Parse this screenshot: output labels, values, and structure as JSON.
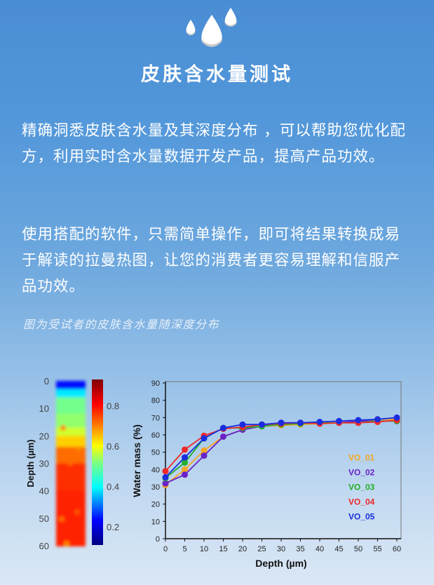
{
  "header": {
    "icon": "water-drops-icon",
    "title": "皮肤含水量测试"
  },
  "paragraphs": [
    "精确洞悉皮肤含水量及其深度分布 ，可以帮助您优化配方，利用实时含水量数据开发产品，提高产品功效。",
    "使用搭配的软件，只需简单操作，即可将结果转换成易于解读的拉曼热图，让您的消费者更容易理解和信服产品功效。"
  ],
  "caption": "图为受试者的皮肤含水量随深度分布",
  "chart_data": [
    {
      "type": "heatmap",
      "ylabel": "Depth (µm)",
      "yticks": [
        "0",
        "10",
        "20",
        "30",
        "40",
        "50",
        "60"
      ],
      "ylim": [
        0,
        60
      ],
      "colorbar": {
        "ticks": [
          "0.2",
          "0.4",
          "0.6",
          "0.8"
        ],
        "range": [
          0.11,
          0.93
        ],
        "colormap": "jet"
      },
      "profile_description_values": {
        "depth": [
          0,
          3,
          6,
          12,
          17,
          20,
          24,
          30,
          40,
          60
        ],
        "value": [
          0.15,
          0.3,
          0.5,
          0.52,
          0.55,
          0.62,
          0.7,
          0.78,
          0.8,
          0.8
        ]
      }
    },
    {
      "type": "line",
      "xlabel": "Depth (µm)",
      "ylabel": "Water mass (%)",
      "xlim": [
        0,
        60
      ],
      "ylim": [
        0,
        90
      ],
      "xticks": [
        "0",
        "5",
        "10",
        "15",
        "20",
        "25",
        "30",
        "35",
        "40",
        "45",
        "50",
        "55",
        "60"
      ],
      "yticks": [
        "0",
        "10",
        "20",
        "30",
        "40",
        "50",
        "60",
        "70",
        "80",
        "90"
      ],
      "legend_position": "right",
      "x": [
        0,
        5,
        10,
        15,
        20,
        25,
        30,
        35,
        40,
        45,
        50,
        55,
        60
      ],
      "series": [
        {
          "name": "VO_01",
          "color": "#f5a623",
          "values": [
            31,
            40,
            51,
            59,
            63,
            65,
            65.5,
            66,
            66.5,
            67,
            68,
            69,
            69
          ]
        },
        {
          "name": "VO_02",
          "color": "#6a22c9",
          "values": [
            32,
            37,
            48,
            59,
            63,
            65,
            67,
            67,
            67,
            67,
            68,
            68,
            68
          ]
        },
        {
          "name": "VO_03",
          "color": "#22b02a",
          "values": [
            35,
            44,
            58,
            64,
            64,
            65,
            66,
            66.5,
            67,
            67,
            67,
            68,
            68
          ]
        },
        {
          "name": "VO_04",
          "color": "#f0282a",
          "values": [
            39,
            51.5,
            59.5,
            63.5,
            64.5,
            66,
            66.5,
            67,
            66.5,
            67,
            67,
            67.5,
            68.5
          ]
        },
        {
          "name": "VO_05",
          "color": "#1a2ee0",
          "values": [
            35.5,
            47,
            58,
            64,
            66,
            66,
            67,
            67,
            67.5,
            68,
            68.5,
            69,
            70
          ]
        }
      ]
    }
  ]
}
